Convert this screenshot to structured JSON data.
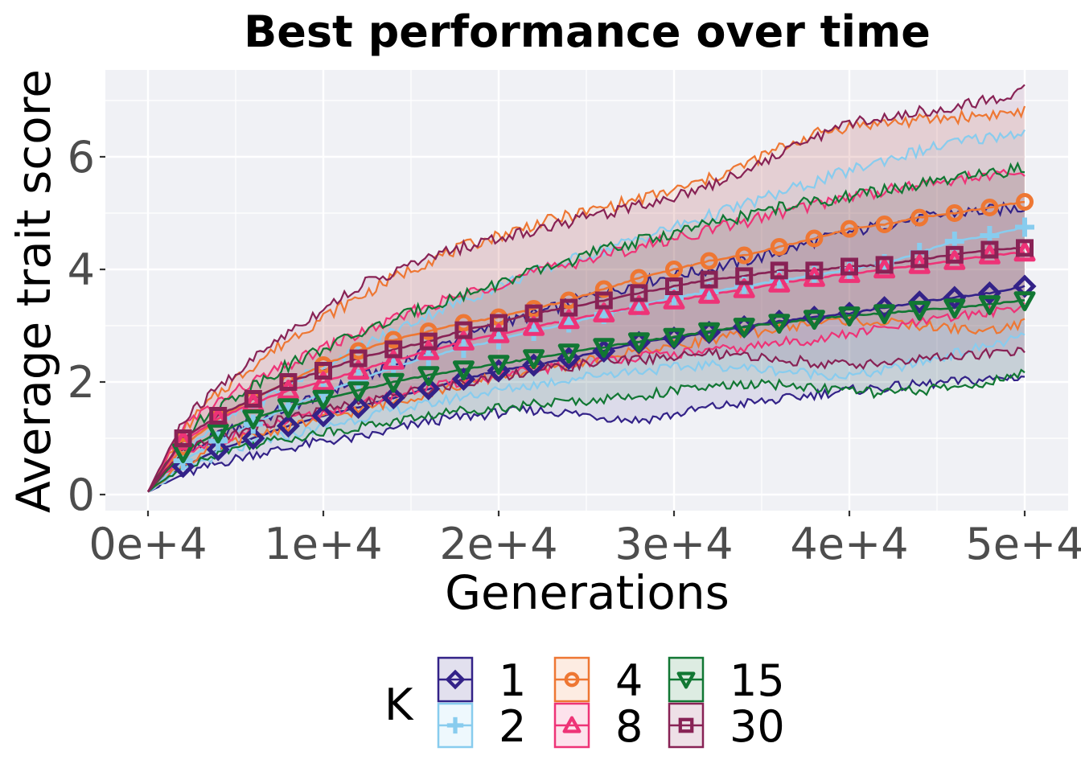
{
  "chart_data": {
    "type": "line",
    "title": "Best performance over time",
    "xlabel": "Generations",
    "ylabel": "Average trait score",
    "xlim": [
      0,
      50000
    ],
    "ylim": [
      -0.25,
      7.6
    ],
    "x_ticks": [
      0,
      10000,
      20000,
      30000,
      40000,
      50000
    ],
    "x_tick_labels": [
      "0e+4",
      "1e+4",
      "2e+4",
      "3e+4",
      "4e+4",
      "5e+4"
    ],
    "y_ticks": [
      0,
      2,
      4,
      6
    ],
    "y_tick_labels": [
      "0",
      "2",
      "4",
      "6"
    ],
    "grid": true,
    "background": "#f0f1f5",
    "legend": {
      "title": "K",
      "placement": "bottom"
    },
    "x": [
      0,
      2000,
      4000,
      6000,
      8000,
      10000,
      12000,
      14000,
      16000,
      18000,
      20000,
      22000,
      24000,
      26000,
      28000,
      30000,
      32000,
      34000,
      36000,
      38000,
      40000,
      42000,
      44000,
      46000,
      48000,
      50000
    ],
    "series": [
      {
        "name": "1",
        "color": "#332288",
        "marker": "diamond",
        "values": [
          0.05,
          0.5,
          0.8,
          1.0,
          1.22,
          1.4,
          1.55,
          1.72,
          1.88,
          2.05,
          2.2,
          2.3,
          2.42,
          2.55,
          2.7,
          2.78,
          2.88,
          2.98,
          3.08,
          3.15,
          3.22,
          3.32,
          3.42,
          3.5,
          3.58,
          3.7
        ],
        "lower": [
          0.05,
          0.35,
          0.55,
          0.72,
          0.82,
          0.95,
          1.0,
          1.15,
          1.3,
          1.38,
          1.45,
          1.5,
          1.45,
          1.38,
          1.32,
          1.42,
          1.55,
          1.62,
          1.68,
          1.78,
          1.85,
          1.9,
          1.95,
          2.0,
          2.05,
          2.1
        ],
        "upper": [
          0.05,
          0.7,
          1.05,
          1.28,
          1.55,
          1.8,
          2.05,
          2.3,
          2.55,
          2.8,
          3.0,
          3.2,
          3.4,
          3.6,
          3.75,
          3.9,
          4.0,
          4.15,
          4.3,
          4.5,
          4.65,
          4.8,
          4.9,
          5.0,
          5.05,
          5.1
        ]
      },
      {
        "name": "2",
        "color": "#88ccee",
        "marker": "plus",
        "values": [
          0.05,
          0.6,
          0.95,
          1.25,
          1.55,
          1.8,
          2.05,
          2.25,
          2.45,
          2.6,
          2.75,
          2.9,
          3.05,
          3.2,
          3.35,
          3.5,
          3.6,
          3.7,
          3.8,
          3.9,
          4.0,
          4.1,
          4.3,
          4.5,
          4.6,
          4.75
        ],
        "lower": [
          0.05,
          0.45,
          0.7,
          0.9,
          1.05,
          1.2,
          1.35,
          1.5,
          1.6,
          1.75,
          1.85,
          1.95,
          2.05,
          2.15,
          2.2,
          2.25,
          2.3,
          2.25,
          2.2,
          2.15,
          2.1,
          2.2,
          2.35,
          2.5,
          2.65,
          2.8
        ],
        "upper": [
          0.05,
          0.85,
          1.25,
          1.6,
          1.95,
          2.3,
          2.6,
          2.9,
          3.2,
          3.45,
          3.7,
          3.95,
          4.15,
          4.35,
          4.55,
          4.75,
          4.95,
          5.15,
          5.35,
          5.55,
          5.75,
          5.95,
          6.1,
          6.25,
          6.35,
          6.45
        ]
      },
      {
        "name": "4",
        "color": "#ee7733",
        "marker": "circle",
        "values": [
          0.05,
          0.85,
          1.35,
          1.7,
          2.0,
          2.3,
          2.55,
          2.75,
          2.9,
          3.05,
          3.15,
          3.3,
          3.45,
          3.65,
          3.85,
          4.0,
          4.15,
          4.25,
          4.4,
          4.55,
          4.72,
          4.8,
          4.92,
          5.0,
          5.1,
          5.2
        ],
        "lower": [
          0.05,
          0.55,
          0.85,
          1.05,
          1.2,
          1.35,
          1.5,
          1.65,
          1.8,
          1.95,
          2.1,
          2.2,
          2.3,
          2.45,
          2.55,
          2.65,
          2.75,
          2.85,
          2.95,
          3.05,
          3.1,
          3.05,
          3.0,
          2.95,
          2.9,
          3.05
        ],
        "upper": [
          0.05,
          1.15,
          1.8,
          2.3,
          2.75,
          3.15,
          3.5,
          3.85,
          4.15,
          4.4,
          4.6,
          4.8,
          4.95,
          5.1,
          5.25,
          5.4,
          5.6,
          5.85,
          6.15,
          6.4,
          6.55,
          6.6,
          6.65,
          6.7,
          6.75,
          6.8
        ]
      },
      {
        "name": "8",
        "color": "#ee3377",
        "marker": "triangle-up",
        "values": [
          0.05,
          0.95,
          1.35,
          1.62,
          1.85,
          2.0,
          2.2,
          2.38,
          2.55,
          2.72,
          2.85,
          2.98,
          3.1,
          3.22,
          3.35,
          3.45,
          3.55,
          3.65,
          3.75,
          3.85,
          3.92,
          4.0,
          4.08,
          4.15,
          4.25,
          4.3
        ],
        "lower": [
          0.05,
          0.65,
          0.95,
          1.15,
          1.3,
          1.45,
          1.6,
          1.75,
          1.9,
          2.0,
          2.1,
          2.2,
          2.3,
          2.4,
          2.45,
          2.5,
          2.55,
          2.6,
          2.7,
          2.75,
          2.85,
          2.95,
          3.05,
          3.15,
          3.25,
          3.35
        ],
        "upper": [
          0.05,
          1.2,
          1.65,
          2.0,
          2.3,
          2.6,
          2.85,
          3.1,
          3.35,
          3.55,
          3.75,
          3.95,
          4.1,
          4.25,
          4.4,
          4.55,
          4.7,
          4.85,
          5.0,
          5.15,
          5.3,
          5.4,
          5.5,
          5.6,
          5.65,
          5.7
        ]
      },
      {
        "name": "15",
        "color": "#117733",
        "marker": "triangle-down",
        "values": [
          0.05,
          0.75,
          1.1,
          1.35,
          1.55,
          1.7,
          1.85,
          2.0,
          2.12,
          2.22,
          2.32,
          2.42,
          2.52,
          2.62,
          2.72,
          2.8,
          2.9,
          2.98,
          3.05,
          3.12,
          3.18,
          3.22,
          3.28,
          3.32,
          3.38,
          3.45
        ],
        "lower": [
          0.05,
          0.5,
          0.75,
          0.9,
          1.0,
          1.1,
          1.2,
          1.3,
          1.4,
          1.5,
          1.55,
          1.6,
          1.65,
          1.7,
          1.75,
          1.85,
          1.9,
          1.95,
          1.95,
          1.9,
          1.85,
          1.8,
          1.85,
          1.9,
          2.0,
          2.15
        ],
        "upper": [
          0.05,
          1.05,
          1.55,
          1.95,
          2.3,
          2.6,
          2.85,
          3.1,
          3.35,
          3.55,
          3.75,
          3.95,
          4.15,
          4.35,
          4.5,
          4.65,
          4.8,
          4.95,
          5.1,
          5.2,
          5.3,
          5.4,
          5.5,
          5.6,
          5.7,
          5.8
        ]
      },
      {
        "name": "30",
        "color": "#882255",
        "marker": "square",
        "values": [
          0.05,
          1.0,
          1.4,
          1.7,
          2.0,
          2.2,
          2.42,
          2.58,
          2.72,
          2.92,
          3.05,
          3.22,
          3.32,
          3.45,
          3.58,
          3.7,
          3.82,
          3.88,
          3.98,
          3.98,
          4.05,
          4.08,
          4.18,
          4.26,
          4.35,
          4.38
        ],
        "lower": [
          0.05,
          0.75,
          1.0,
          1.2,
          1.35,
          1.5,
          1.62,
          1.75,
          1.88,
          2.0,
          2.1,
          2.2,
          2.28,
          2.35,
          2.4,
          2.45,
          2.5,
          2.45,
          2.4,
          2.35,
          2.3,
          2.35,
          2.4,
          2.45,
          2.5,
          2.55
        ],
        "upper": [
          0.05,
          1.3,
          1.9,
          2.4,
          2.9,
          3.3,
          3.7,
          3.95,
          4.2,
          4.4,
          4.55,
          4.7,
          4.85,
          5.0,
          5.15,
          5.3,
          5.5,
          5.75,
          6.05,
          6.35,
          6.6,
          6.7,
          6.8,
          6.9,
          7.0,
          7.2
        ]
      }
    ]
  }
}
